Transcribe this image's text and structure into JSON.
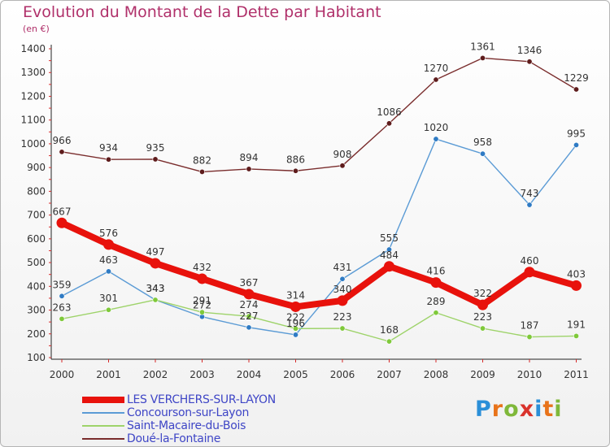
{
  "title": "Evolution du Montant de la Dette par Habitant",
  "unit": "(en €)",
  "logo": {
    "text": "Proxiti",
    "colors": [
      "#2b8fd8",
      "#e8731a",
      "#7fb83a",
      "#d9332c",
      "#2b8fd8",
      "#e8731a",
      "#7fb83a"
    ]
  },
  "chart_data": {
    "type": "line",
    "x": [
      "2000",
      "2001",
      "2002",
      "2003",
      "2004",
      "2005",
      "2006",
      "2007",
      "2008",
      "2009",
      "2010",
      "2011"
    ],
    "ylim": [
      100,
      1400
    ],
    "yticks": [
      100,
      200,
      300,
      400,
      500,
      600,
      700,
      800,
      900,
      1000,
      1100,
      1200,
      1300,
      1400
    ],
    "grid": false,
    "legend_position": "bottom-left",
    "series": [
      {
        "name": "LES VERCHERS-SUR-LAYON",
        "color": "#e8120c",
        "values": [
          667,
          576,
          497,
          432,
          367,
          314,
          340,
          484,
          416,
          322,
          460,
          403
        ]
      },
      {
        "name": "Concourson-sur-Layon",
        "color": "#5b9bd5",
        "values": [
          359,
          463,
          343,
          272,
          227,
          196,
          431,
          555,
          1020,
          958,
          743,
          995
        ]
      },
      {
        "name": "Saint-Macaire-du-Bois",
        "color": "#9ed36a",
        "values": [
          263,
          301,
          343,
          291,
          274,
          222,
          223,
          168,
          289,
          223,
          187,
          191
        ]
      },
      {
        "name": "Doué-la-Fontaine",
        "color": "#7a2d2d",
        "values": [
          966,
          934,
          935,
          882,
          894,
          886,
          908,
          1086,
          1270,
          1361,
          1346,
          1229
        ]
      }
    ],
    "data_labels": [
      {
        "series": 0,
        "text": [
          "667",
          "576",
          "497",
          "432",
          "367",
          "314",
          "340",
          "484",
          "416",
          "322",
          "460",
          "403"
        ]
      },
      {
        "series": 1,
        "text": [
          "359",
          "463",
          "343",
          "272",
          "227",
          "196",
          "431",
          "555",
          "1020",
          "958",
          "743",
          "995"
        ]
      },
      {
        "series": 2,
        "text": [
          "263",
          "301",
          "343",
          "291",
          "274",
          "222",
          "223",
          "168",
          "289",
          "223",
          "187",
          "191"
        ]
      },
      {
        "series": 3,
        "text": [
          "966",
          "934",
          "935",
          "882",
          "894",
          "886",
          "908",
          "1086",
          "1270",
          "1361",
          "1346",
          "1229"
        ]
      }
    ]
  }
}
